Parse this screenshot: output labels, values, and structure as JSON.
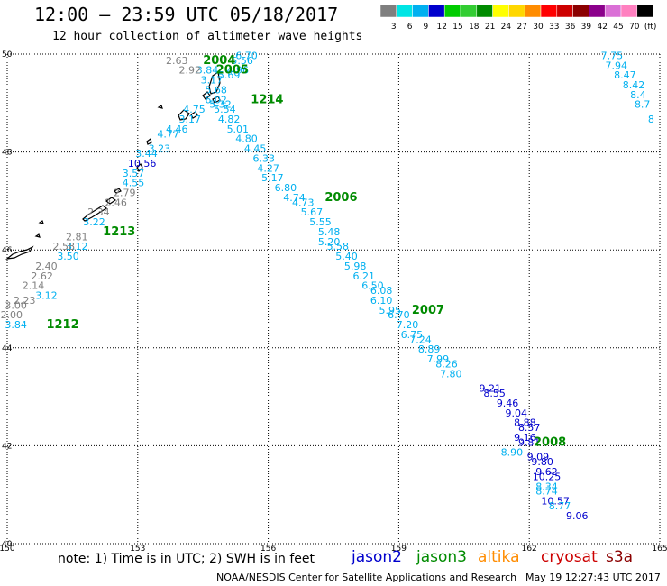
{
  "header": {
    "title": "12:00 — 23:59 UTC 05/18/2017",
    "subtitle": "12 hour collection of altimeter wave heights"
  },
  "color_scale": {
    "labels": [
      "3",
      "6",
      "9",
      "12",
      "15",
      "18",
      "21",
      "24",
      "27",
      "30",
      "33",
      "36",
      "39",
      "42",
      "45",
      "70",
      "(ft)"
    ],
    "colors": [
      "#7f7f7f",
      "#00e5e5",
      "#00b0f0",
      "#0000cd",
      "#00cc00",
      "#32cd32",
      "#008b00",
      "#ffff00",
      "#ffd700",
      "#ff8c00",
      "#ff0000",
      "#cd0000",
      "#8b0000",
      "#8b008b",
      "#da70d6",
      "#ff80c0",
      "#000000"
    ]
  },
  "chart_data": {
    "type": "scatter",
    "title": "12:00 — 23:59 UTC 05/18/2017",
    "subtitle": "12 hour collection of altimeter wave heights",
    "xlim": [
      150,
      165
    ],
    "ylim": [
      40,
      50
    ],
    "x_ticks": [
      "150",
      "153",
      "156",
      "159",
      "162",
      "165"
    ],
    "y_ticks": [
      "40",
      "42",
      "44",
      "46",
      "48",
      "50"
    ],
    "grid": true,
    "series": [
      {
        "name": "jason2",
        "color": "#0000cd",
        "points": [
          {
            "x": 153.1,
            "y": 47.7,
            "v": "10.56"
          },
          {
            "x": 161.1,
            "y": 43.1,
            "v": "9.21"
          },
          {
            "x": 161.2,
            "y": 43.0,
            "v": "8.55"
          },
          {
            "x": 161.5,
            "y": 42.8,
            "v": "9.46"
          },
          {
            "x": 161.7,
            "y": 42.6,
            "v": "9.04"
          },
          {
            "x": 161.9,
            "y": 42.4,
            "v": "8.88"
          },
          {
            "x": 162.0,
            "y": 42.3,
            "v": "8.57"
          },
          {
            "x": 161.9,
            "y": 42.1,
            "v": "9.16"
          },
          {
            "x": 162.0,
            "y": 42.0,
            "v": "9.81"
          },
          {
            "x": 162.2,
            "y": 41.7,
            "v": "9.09"
          },
          {
            "x": 162.3,
            "y": 41.6,
            "v": "9.80"
          },
          {
            "x": 162.4,
            "y": 41.4,
            "v": "9.62"
          },
          {
            "x": 162.4,
            "y": 41.3,
            "v": "10.25"
          },
          {
            "x": 162.6,
            "y": 40.8,
            "v": "10.57"
          },
          {
            "x": 163.1,
            "y": 40.5,
            "v": "9.06"
          }
        ]
      },
      {
        "name": "jason3",
        "color": "#00b0f0",
        "points": [
          {
            "x": 155.5,
            "y": 49.9,
            "v": "6.70"
          },
          {
            "x": 155.4,
            "y": 49.8,
            "v": "5.56"
          },
          {
            "x": 155.3,
            "y": 49.6,
            "v": "4.96"
          },
          {
            "x": 155.1,
            "y": 49.5,
            "v": "5.69"
          },
          {
            "x": 154.8,
            "y": 49.2,
            "v": "5.68"
          },
          {
            "x": 154.8,
            "y": 49.0,
            "v": "6.02"
          },
          {
            "x": 154.9,
            "y": 48.9,
            "v": "5.32"
          },
          {
            "x": 155.0,
            "y": 48.8,
            "v": "5.54"
          },
          {
            "x": 155.1,
            "y": 48.6,
            "v": "4.82"
          },
          {
            "x": 155.3,
            "y": 48.4,
            "v": "5.01"
          },
          {
            "x": 155.5,
            "y": 48.2,
            "v": "4.80"
          },
          {
            "x": 155.7,
            "y": 48.0,
            "v": "4.45"
          },
          {
            "x": 155.9,
            "y": 47.8,
            "v": "6.33"
          },
          {
            "x": 156.0,
            "y": 47.6,
            "v": "4.27"
          },
          {
            "x": 156.1,
            "y": 47.4,
            "v": "5.17"
          },
          {
            "x": 156.4,
            "y": 47.2,
            "v": "6.80"
          },
          {
            "x": 156.6,
            "y": 47.0,
            "v": "4.74"
          },
          {
            "x": 156.8,
            "y": 46.9,
            "v": "4.73"
          },
          {
            "x": 157.0,
            "y": 46.7,
            "v": "5.67"
          },
          {
            "x": 157.2,
            "y": 46.5,
            "v": "5.55"
          },
          {
            "x": 157.4,
            "y": 46.3,
            "v": "5.48"
          },
          {
            "x": 157.4,
            "y": 46.1,
            "v": "5.20"
          },
          {
            "x": 157.6,
            "y": 46.0,
            "v": "5.58"
          },
          {
            "x": 157.8,
            "y": 45.8,
            "v": "5.40"
          },
          {
            "x": 158.0,
            "y": 45.6,
            "v": "5.98"
          },
          {
            "x": 158.2,
            "y": 45.4,
            "v": "6.21"
          },
          {
            "x": 158.4,
            "y": 45.2,
            "v": "6.50"
          },
          {
            "x": 158.6,
            "y": 45.1,
            "v": "6.08"
          },
          {
            "x": 158.6,
            "y": 44.9,
            "v": "6.10"
          },
          {
            "x": 158.8,
            "y": 44.7,
            "v": "5.95"
          },
          {
            "x": 159.0,
            "y": 44.6,
            "v": "6.70"
          },
          {
            "x": 159.2,
            "y": 44.4,
            "v": "7.20"
          },
          {
            "x": 159.3,
            "y": 44.2,
            "v": "6.75"
          },
          {
            "x": 159.5,
            "y": 44.1,
            "v": "7.24"
          },
          {
            "x": 159.7,
            "y": 43.9,
            "v": "8.89"
          },
          {
            "x": 159.9,
            "y": 43.7,
            "v": "7.99"
          },
          {
            "x": 160.1,
            "y": 43.6,
            "v": "8.26"
          },
          {
            "x": 160.2,
            "y": 43.4,
            "v": "7.80"
          },
          {
            "x": 161.6,
            "y": 41.8,
            "v": "8.90"
          },
          {
            "x": 162.4,
            "y": 41.1,
            "v": "8.34"
          },
          {
            "x": 162.4,
            "y": 41.0,
            "v": "8.74"
          },
          {
            "x": 162.7,
            "y": 40.7,
            "v": "8.77"
          },
          {
            "x": 154.6,
            "y": 49.6,
            "v": "3.84"
          },
          {
            "x": 154.7,
            "y": 49.4,
            "v": "3.17"
          },
          {
            "x": 154.3,
            "y": 48.8,
            "v": "4.75"
          },
          {
            "x": 154.2,
            "y": 48.6,
            "v": "3.17"
          },
          {
            "x": 153.9,
            "y": 48.4,
            "v": "4.46"
          },
          {
            "x": 153.7,
            "y": 48.3,
            "v": "4.77"
          },
          {
            "x": 153.5,
            "y": 48.0,
            "v": "3.23"
          },
          {
            "x": 153.2,
            "y": 47.9,
            "v": "3.44"
          },
          {
            "x": 152.9,
            "y": 47.5,
            "v": "3.57"
          },
          {
            "x": 152.9,
            "y": 47.3,
            "v": "4.55"
          },
          {
            "x": 152.0,
            "y": 46.5,
            "v": "3.22"
          },
          {
            "x": 151.6,
            "y": 46.0,
            "v": "3.12"
          },
          {
            "x": 151.4,
            "y": 45.8,
            "v": "3.50"
          },
          {
            "x": 150.9,
            "y": 45.0,
            "v": "3.12"
          },
          {
            "x": 150.2,
            "y": 44.4,
            "v": "3.84"
          },
          {
            "x": 163.9,
            "y": 49.9,
            "v": "7.75"
          },
          {
            "x": 164.0,
            "y": 49.7,
            "v": "7.94"
          },
          {
            "x": 164.2,
            "y": 49.5,
            "v": "8.47"
          },
          {
            "x": 164.4,
            "y": 49.3,
            "v": "8.42"
          },
          {
            "x": 164.5,
            "y": 49.1,
            "v": "8.4"
          },
          {
            "x": 164.6,
            "y": 48.9,
            "v": "8.7"
          },
          {
            "x": 164.8,
            "y": 48.6,
            "v": "8"
          }
        ]
      },
      {
        "name": "altika",
        "color": "#7f7f7f",
        "points": [
          {
            "x": 153.9,
            "y": 49.8,
            "v": "2.63"
          },
          {
            "x": 154.2,
            "y": 49.6,
            "v": "2.92"
          },
          {
            "x": 152.7,
            "y": 47.1,
            "v": "2.79"
          },
          {
            "x": 152.5,
            "y": 46.9,
            "v": "2.46"
          },
          {
            "x": 152.1,
            "y": 46.7,
            "v": "2.34"
          },
          {
            "x": 151.6,
            "y": 46.2,
            "v": "2.81"
          },
          {
            "x": 151.3,
            "y": 46.0,
            "v": "2.58"
          },
          {
            "x": 150.9,
            "y": 45.6,
            "v": "2.40"
          },
          {
            "x": 150.8,
            "y": 45.4,
            "v": "2.62"
          },
          {
            "x": 150.6,
            "y": 45.2,
            "v": "2.14"
          },
          {
            "x": 150.4,
            "y": 44.9,
            "v": "2.23"
          },
          {
            "x": 150.2,
            "y": 44.8,
            "v": "3.00"
          },
          {
            "x": 150.1,
            "y": 44.6,
            "v": "2.00"
          }
        ]
      }
    ],
    "pass_labels": [
      {
        "x": 154.5,
        "y": 49.8,
        "text": "2004"
      },
      {
        "x": 154.8,
        "y": 49.6,
        "text": "2005"
      },
      {
        "x": 155.6,
        "y": 49.0,
        "text": "1214"
      },
      {
        "x": 157.3,
        "y": 47.0,
        "text": "2006"
      },
      {
        "x": 152.2,
        "y": 46.3,
        "text": "1213"
      },
      {
        "x": 159.3,
        "y": 44.7,
        "text": "2007"
      },
      {
        "x": 150.9,
        "y": 44.4,
        "text": "1212"
      },
      {
        "x": 162.1,
        "y": 42.0,
        "text": "2008"
      }
    ]
  },
  "footer": {
    "note": "note: 1) Time is in UTC; 2) SWH is in feet",
    "satellites": [
      {
        "name": "jason2",
        "color": "#0000cd"
      },
      {
        "name": "jason3",
        "color": "#008b00"
      },
      {
        "name": "altika",
        "color": "#ff8c00"
      },
      {
        "name": "cryosat",
        "color": "#cd0000"
      },
      {
        "name": "s3a",
        "color": "#8b0000"
      }
    ],
    "credit": "NOAA/NESDIS Center for Satellite Applications and Research",
    "timestamp": "May 19 12:27:43 UTC 2017"
  }
}
